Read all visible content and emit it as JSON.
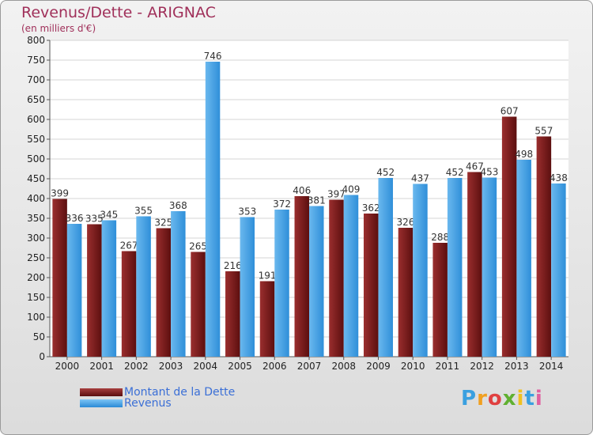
{
  "chart_data": {
    "type": "bar",
    "title": "Revenus/Dette - ARIGNAC",
    "subtitle": "(en milliers d'€)",
    "categories": [
      "2000",
      "2001",
      "2002",
      "2003",
      "2004",
      "2005",
      "2006",
      "2007",
      "2008",
      "2009",
      "2010",
      "2011",
      "2012",
      "2013",
      "2014"
    ],
    "series": [
      {
        "name": "Montant de la Dette",
        "color": "#7a1a1a",
        "values": [
          399,
          335,
          267,
          325,
          265,
          216,
          191,
          406,
          397,
          362,
          326,
          288,
          467,
          607,
          557
        ]
      },
      {
        "name": "Revenus",
        "color": "#3d9be0",
        "values": [
          336,
          345,
          355,
          368,
          746,
          353,
          372,
          381,
          409,
          452,
          437,
          452,
          453,
          498,
          438
        ]
      }
    ],
    "ylim": [
      0,
      800
    ],
    "yticks": [
      0,
      50,
      100,
      150,
      200,
      250,
      300,
      350,
      400,
      450,
      500,
      550,
      600,
      650,
      700,
      750,
      800
    ],
    "grid": true,
    "legend_position": "bottom-left"
  },
  "brand": {
    "logo_letters": [
      "P",
      "r",
      "o",
      "x",
      "i",
      "t",
      "i"
    ],
    "logo_colors": [
      "#3aa0e0",
      "#f0a020",
      "#e04040",
      "#60b030",
      "#f0c020",
      "#3aa0e0",
      "#e060a0"
    ]
  }
}
